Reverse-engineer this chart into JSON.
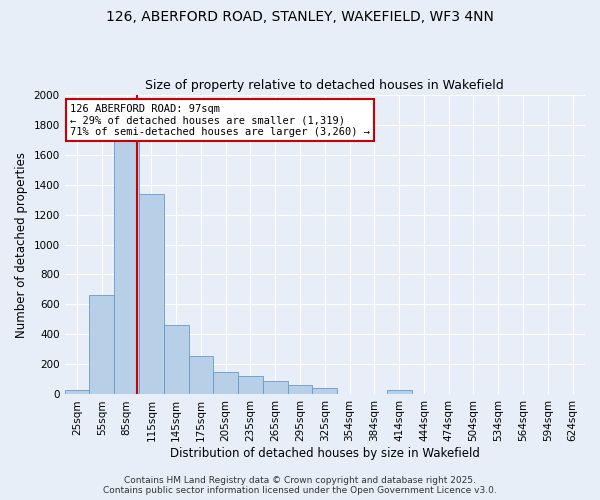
{
  "title": "126, ABERFORD ROAD, STANLEY, WAKEFIELD, WF3 4NN",
  "subtitle": "Size of property relative to detached houses in Wakefield",
  "xlabel": "Distribution of detached houses by size in Wakefield",
  "ylabel": "Number of detached properties",
  "categories": [
    "25sqm",
    "55sqm",
    "85sqm",
    "115sqm",
    "145sqm",
    "175sqm",
    "205sqm",
    "235sqm",
    "265sqm",
    "295sqm",
    "325sqm",
    "354sqm",
    "384sqm",
    "414sqm",
    "444sqm",
    "474sqm",
    "504sqm",
    "534sqm",
    "564sqm",
    "594sqm",
    "624sqm"
  ],
  "values": [
    30,
    660,
    1720,
    1340,
    465,
    255,
    150,
    120,
    90,
    65,
    40,
    0,
    0,
    30,
    0,
    0,
    0,
    0,
    0,
    0,
    0
  ],
  "bar_color": "#b8cfe8",
  "bar_edge_color": "#6699cc",
  "background_color": "#e8eef8",
  "ylim": [
    0,
    2000
  ],
  "yticks": [
    0,
    200,
    400,
    600,
    800,
    1000,
    1200,
    1400,
    1600,
    1800,
    2000
  ],
  "property_label": "126 ABERFORD ROAD: 97sqm",
  "annotation_line1": "← 29% of detached houses are smaller (1,319)",
  "annotation_line2": "71% of semi-detached houses are larger (3,260) →",
  "vline_color": "#cc0000",
  "annotation_box_color": "#cc0000",
  "footer_line1": "Contains HM Land Registry data © Crown copyright and database right 2025.",
  "footer_line2": "Contains public sector information licensed under the Open Government Licence v3.0.",
  "title_fontsize": 10,
  "subtitle_fontsize": 9,
  "axis_label_fontsize": 8.5,
  "tick_fontsize": 7.5,
  "footer_fontsize": 6.5,
  "annotation_fontsize": 7.5,
  "vline_xindex": 2.4
}
